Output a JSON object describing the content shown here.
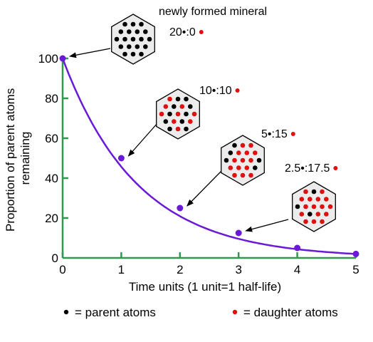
{
  "chart_data": {
    "type": "line",
    "title": "",
    "xlabel": "Time units (1 unit=1 half-life)",
    "ylabel": "Proportion of parent atoms remaining",
    "xlim": [
      0,
      5
    ],
    "ylim": [
      0,
      100
    ],
    "x_ticks": [
      "0",
      "1",
      "2",
      "3",
      "4",
      "5"
    ],
    "y_ticks": [
      "0",
      "20",
      "40",
      "60",
      "80",
      "100"
    ],
    "grid": false,
    "series": [
      {
        "x": [
          0,
          1,
          2,
          3,
          4,
          5
        ],
        "values": [
          100,
          50,
          25,
          12.5,
          5,
          2
        ]
      }
    ],
    "colors": {
      "curve": "#6a1ad6",
      "axis": "#2f9a4f",
      "parent_atom": "#000000",
      "daughter_atom": "#e01010"
    },
    "annotations": [
      {
        "title": "newly formed mineral",
        "ratio": "20•:0",
        "parent": 20,
        "daughter": 0,
        "points_to_x": 0
      },
      {
        "ratio": "10•:10",
        "parent": 10,
        "daughter": 10,
        "points_to_x": 1
      },
      {
        "ratio": "5•:15",
        "parent": 5,
        "daughter": 15,
        "points_to_x": 2
      },
      {
        "ratio": "2.5•:17.5",
        "parent": 2.5,
        "daughter": 17.5,
        "points_to_x": 3
      }
    ],
    "legend": {
      "position": "bottom",
      "parent_label": "= parent atoms",
      "daughter_label": "= daughter atoms"
    }
  }
}
